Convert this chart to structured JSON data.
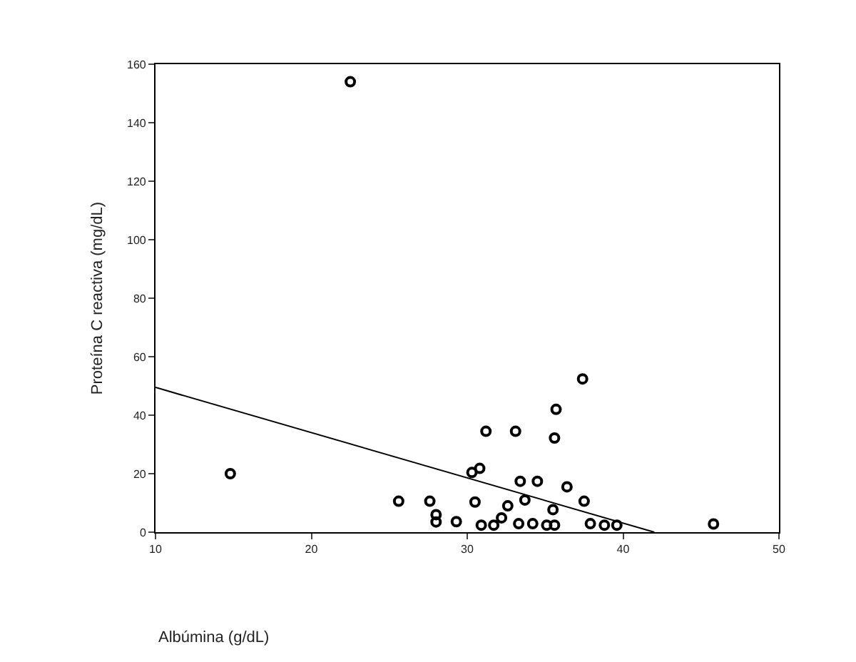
{
  "chart_data": {
    "type": "scatter",
    "xlabel": "Albúmina (g/dL)",
    "ylabel": "Proteína C reactiva (mg/dL)",
    "xlim": [
      10,
      50
    ],
    "xticks": [
      10,
      20,
      30,
      40,
      50
    ],
    "ylim": [
      0,
      160
    ],
    "yticks": [
      0,
      20,
      40,
      60,
      80,
      100,
      120,
      140,
      160
    ],
    "marker": "circle",
    "series": [
      {
        "color": "#000000",
        "x": [
          14.8,
          22.5,
          25.6,
          27.6,
          28.0,
          28.0,
          29.3,
          30.3,
          30.8,
          30.5,
          31.2,
          30.9,
          31.7,
          32.2,
          32.6,
          33.1,
          33.4,
          33.7,
          33.3,
          34.2,
          34.5,
          35.1,
          35.6,
          35.5,
          35.7,
          35.6,
          36.4,
          37.4,
          37.5,
          37.9,
          38.8,
          39.6,
          45.8
        ],
        "values": [
          20,
          154,
          10.6,
          10.6,
          3.5,
          6,
          3.6,
          20.4,
          21.8,
          10.3,
          34.5,
          2.4,
          2.4,
          4.9,
          9,
          34.5,
          17.4,
          11,
          2.9,
          2.9,
          17.4,
          2.4,
          2.4,
          7.7,
          42,
          32.2,
          15.5,
          52.4,
          10.6,
          2.9,
          2.4,
          2.4,
          2.8
        ]
      },
      {
        "type": "line",
        "color": "#000000",
        "marker": "none",
        "line_style": "solid",
        "x": [
          10,
          42
        ],
        "values": [
          49.5,
          0
        ]
      }
    ]
  }
}
